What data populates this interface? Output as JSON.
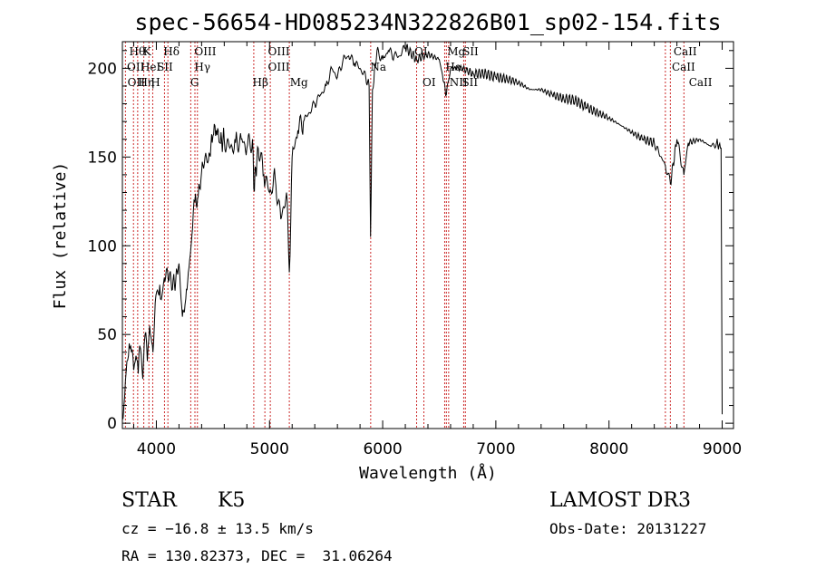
{
  "chart_data": {
    "type": "line",
    "title": "spec-56654-HD085234N322826B01_sp02-154.fits",
    "xlabel": "Wavelength (Å)",
    "ylabel": "Flux (relative)",
    "xlim": [
      3700,
      9100
    ],
    "ylim": [
      -3,
      215
    ],
    "xticks": [
      4000,
      5000,
      6000,
      7000,
      8000,
      9000
    ],
    "yticks": [
      0,
      50,
      100,
      150,
      200
    ],
    "grid": false,
    "series": [
      {
        "x": [
          3700,
          3720,
          3740,
          3760,
          3780,
          3800,
          3820,
          3840,
          3860,
          3880,
          3900,
          3920,
          3940,
          3960,
          3970,
          3990,
          4010,
          4030,
          4050,
          4070,
          4100,
          4130,
          4160,
          4200,
          4230,
          4260,
          4300,
          4320,
          4340,
          4370,
          4400,
          4430,
          4460,
          4500,
          4530,
          4560,
          4600,
          4650,
          4700,
          4750,
          4800,
          4850,
          4861,
          4900,
          4950,
          5000,
          5050,
          5100,
          5150,
          5175,
          5200,
          5250,
          5300,
          5350,
          5400,
          5450,
          5500,
          5550,
          5600,
          5650,
          5700,
          5750,
          5800,
          5850,
          5880,
          5893,
          5910,
          5950,
          6000,
          6050,
          6100,
          6150,
          6200,
          6300,
          6400,
          6500,
          6563,
          6600,
          6700,
          6800,
          6900,
          7000,
          7100,
          7200,
          7300,
          7400,
          7500,
          7600,
          7700,
          7800,
          7900,
          8000,
          8100,
          8200,
          8300,
          8400,
          8498,
          8542,
          8600,
          8662,
          8700,
          8800,
          8900,
          8950,
          8990,
          9000
        ],
        "y": [
          2,
          15,
          35,
          45,
          40,
          30,
          38,
          28,
          42,
          25,
          50,
          35,
          55,
          45,
          40,
          68,
          75,
          78,
          72,
          82,
          85,
          80,
          78,
          90,
          60,
          70,
          95,
          110,
          125,
          128,
          142,
          150,
          148,
          162,
          165,
          158,
          160,
          155,
          158,
          160,
          155,
          160,
          132,
          155,
          140,
          130,
          138,
          115,
          130,
          85,
          150,
          165,
          170,
          175,
          180,
          185,
          190,
          200,
          195,
          205,
          207,
          203,
          200,
          195,
          190,
          105,
          188,
          210,
          205,
          210,
          207,
          207,
          212,
          205,
          208,
          205,
          185,
          200,
          200,
          197,
          197,
          195,
          194,
          192,
          188,
          188,
          185,
          183,
          182,
          178,
          175,
          172,
          168,
          164,
          160,
          158,
          145,
          135,
          160,
          140,
          158,
          160,
          156,
          158,
          155,
          5
        ]
      }
    ],
    "lines": [
      {
        "name": "Hθ",
        "wl": 3798
      },
      {
        "name": "Hη",
        "wl": 3835
      },
      {
        "name": "OII",
        "wl": 3727
      },
      {
        "name": "HeI",
        "wl": 3889
      },
      {
        "name": "K",
        "wl": 3934
      },
      {
        "name": "H",
        "wl": 3968
      },
      {
        "name": "SII",
        "wl": 4072
      },
      {
        "name": "Hδ",
        "wl": 4102
      },
      {
        "name": "G",
        "wl": 4304
      },
      {
        "name": "Hγ",
        "wl": 4341
      },
      {
        "name": "OIII",
        "wl": 4363
      },
      {
        "name": "Hβ",
        "wl": 4861
      },
      {
        "name": "OIII",
        "wl": 4959
      },
      {
        "name": "OIII",
        "wl": 5007
      },
      {
        "name": "Mg",
        "wl": 5175
      },
      {
        "name": "Na",
        "wl": 5894
      },
      {
        "name": "OI",
        "wl": 6300
      },
      {
        "name": "OI",
        "wl": 6364
      },
      {
        "name": "NII",
        "wl": 6548
      },
      {
        "name": "Hα",
        "wl": 6563
      },
      {
        "name": "NII",
        "wl": 6583
      },
      {
        "name": "SII",
        "wl": 6716
      },
      {
        "name": "SII",
        "wl": 6731
      },
      {
        "name": "CaII",
        "wl": 8498
      },
      {
        "name": "CaII",
        "wl": 8542
      },
      {
        "name": "CaII",
        "wl": 8662
      }
    ],
    "line_labels": [
      {
        "text": "Hθ",
        "wl": 3760,
        "row": 1
      },
      {
        "text": "K",
        "wl": 3882,
        "row": 1
      },
      {
        "text": "Hδ",
        "wl": 4063,
        "row": 1
      },
      {
        "text": "OIII",
        "wl": 4336,
        "row": 1
      },
      {
        "text": "OIII",
        "wl": 4986,
        "row": 1
      },
      {
        "text": "OI",
        "wl": 6280,
        "row": 1
      },
      {
        "text": "Mg",
        "wl": 6570,
        "row": 1
      },
      {
        "text": "SII",
        "wl": 6705,
        "row": 1
      },
      {
        "text": "CaII",
        "wl": 8570,
        "row": 1
      },
      {
        "text": "OII",
        "wl": 3740,
        "row": 2
      },
      {
        "text": "HeI",
        "wl": 3860,
        "row": 2
      },
      {
        "text": "SII",
        "wl": 4005,
        "row": 2
      },
      {
        "text": "Hγ",
        "wl": 4336,
        "row": 2
      },
      {
        "text": "OIII",
        "wl": 4986,
        "row": 2
      },
      {
        "text": "Hα",
        "wl": 6555,
        "row": 2
      },
      {
        "text": "CaII",
        "wl": 8555,
        "row": 2
      },
      {
        "text": "Na",
        "wl": 5890,
        "row": 2
      },
      {
        "text": "OII",
        "wl": 3745,
        "row": 3
      },
      {
        "text": "Hη",
        "wl": 3840,
        "row": 3
      },
      {
        "text": "H",
        "wl": 3950,
        "row": 3
      },
      {
        "text": "G",
        "wl": 4300,
        "row": 3
      },
      {
        "text": "Hβ",
        "wl": 4850,
        "row": 3
      },
      {
        "text": "Mg",
        "wl": 5180,
        "row": 3
      },
      {
        "text": "OI",
        "wl": 6352,
        "row": 3
      },
      {
        "text": "NII",
        "wl": 6590,
        "row": 3
      },
      {
        "text": "SII",
        "wl": 6700,
        "row": 3
      },
      {
        "text": "CaII",
        "wl": 8705,
        "row": 3
      }
    ]
  },
  "info": {
    "class_label": "STAR",
    "subclass_label": "K5",
    "survey_label": "LAMOST DR3",
    "cz_text": "cz = −16.8 ± 13.5 km/s",
    "obs_date_text": "Obs-Date: 20131227",
    "coords_text": "RA = 130.82373, DEC =  31.06264"
  }
}
